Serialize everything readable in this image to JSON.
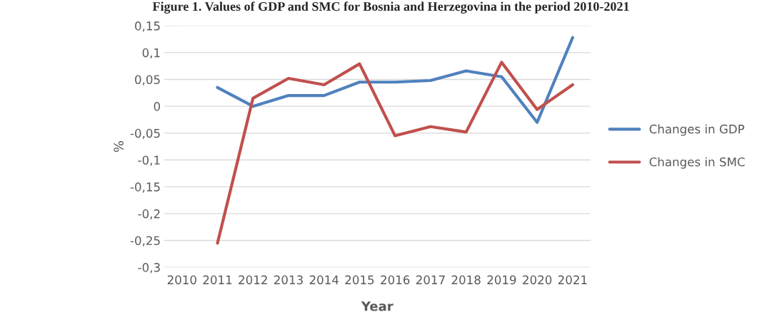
{
  "chart_data": {
    "type": "line",
    "title": "Figure 1. Values of GDP and SMC for Bosnia and Herzegovina in the period 2010-2021",
    "xlabel": "Year",
    "ylabel": "%",
    "categories": [
      "2010",
      "2011",
      "2012",
      "2013",
      "2014",
      "2015",
      "2016",
      "2017",
      "2018",
      "2019",
      "2020",
      "2021"
    ],
    "series": [
      {
        "name": "Changes in GDP",
        "color": "#4f81bd",
        "values": [
          null,
          0.035,
          0.0,
          0.02,
          0.02,
          0.045,
          0.045,
          0.048,
          0.066,
          0.055,
          -0.03,
          0.128
        ]
      },
      {
        "name": "Changes in SMC",
        "color": "#c0504d",
        "values": [
          null,
          -0.255,
          0.015,
          0.052,
          0.04,
          0.079,
          -0.055,
          -0.038,
          -0.048,
          0.082,
          -0.006,
          0.04
        ]
      }
    ],
    "ylim": [
      -0.3,
      0.15
    ],
    "yticks": [
      {
        "value": -0.3,
        "label": "-0,3"
      },
      {
        "value": -0.25,
        "label": "-0,25"
      },
      {
        "value": -0.2,
        "label": "-0,2"
      },
      {
        "value": -0.15,
        "label": "-0,15"
      },
      {
        "value": -0.1,
        "label": "-0,1"
      },
      {
        "value": -0.05,
        "label": "-0,05"
      },
      {
        "value": 0,
        "label": "0"
      },
      {
        "value": 0.05,
        "label": "0,05"
      },
      {
        "value": 0.1,
        "label": "0,1"
      },
      {
        "value": 0.15,
        "label": "0,15"
      }
    ],
    "grid": "y",
    "legend": "right",
    "marker": "none",
    "line_style": "solid"
  }
}
